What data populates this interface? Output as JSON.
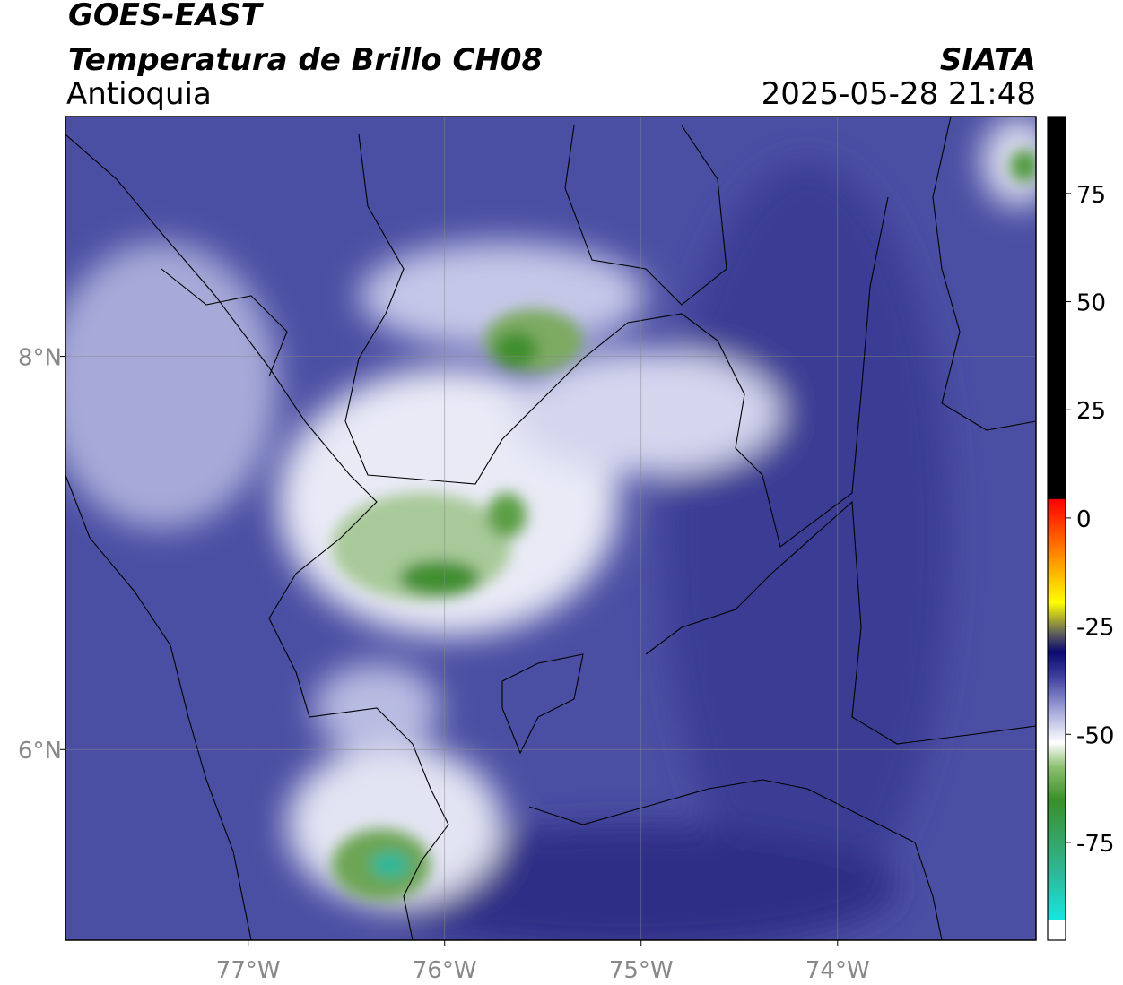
{
  "map_data": {
    "satellite": "GOES-EAST",
    "product": "Temperatura de Brillo CH08",
    "region": "Antioquia",
    "source": "SIATA",
    "datetime": "2025-05-28 21:48",
    "lonlim": [
      -77.93,
      -72.99
    ],
    "latlim": [
      5.03,
      9.22
    ],
    "lonticks": [
      {
        "value": -77,
        "label": "77°W"
      },
      {
        "value": -76,
        "label": "76°W"
      },
      {
        "value": -75,
        "label": "75°W"
      },
      {
        "value": -74,
        "label": "74°W"
      }
    ],
    "latticks": [
      {
        "value": 8,
        "label": "8°N"
      },
      {
        "value": 6,
        "label": "6°N"
      }
    ],
    "grid": true,
    "colorbar": {
      "lim": [
        -97.6,
        92.8
      ],
      "ticks": [
        75,
        50,
        25,
        0,
        -25,
        -50,
        -75
      ]
    }
  }
}
